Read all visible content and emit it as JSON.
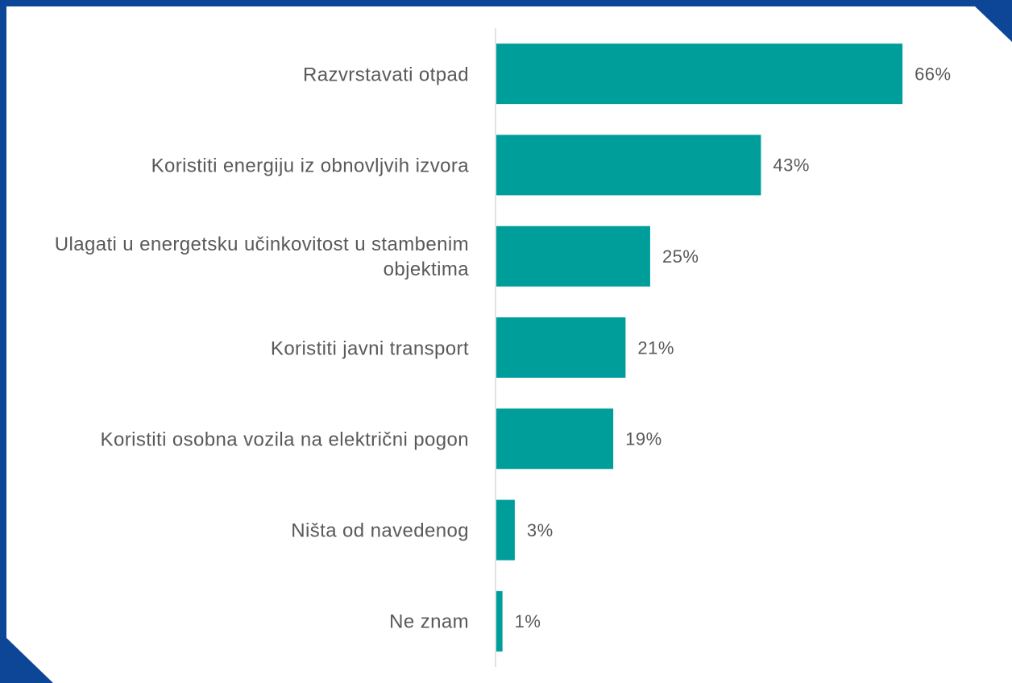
{
  "chart_data": {
    "type": "barh",
    "categories": [
      "Razvrstavati otpad",
      "Koristiti energiju iz obnovljvih izvora",
      "Ulagati u energetsku učinkovitost u stambenim objektima",
      "Koristiti javni transport",
      "Koristiti osobna vozila na električni pogon",
      "Ništa od navedenog",
      "Ne znam"
    ],
    "values": [
      66,
      43,
      25,
      21,
      19,
      3,
      1
    ],
    "value_labels": [
      "66%",
      "43%",
      "25%",
      "21%",
      "19%",
      "3%",
      "1%"
    ],
    "color": "#009e9b",
    "xlim": [
      0,
      80
    ]
  }
}
